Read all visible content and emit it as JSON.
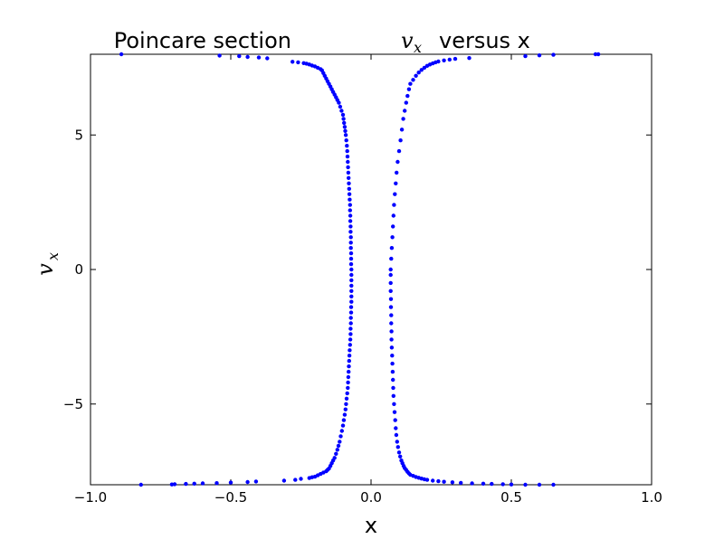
{
  "chart_data": {
    "type": "scatter",
    "title": "Poincare section",
    "title_var": "v",
    "title_var_sub": "x",
    "title_suffix": "versus x",
    "xlabel": "x",
    "ylabel": "v",
    "ylabel_sub": "x",
    "xlim": [
      -1.0,
      1.0
    ],
    "ylim": [
      -8,
      8
    ],
    "xticks": [
      -1.0,
      -0.5,
      0.0,
      0.5,
      1.0
    ],
    "xtick_labels": [
      "−1.0",
      "−0.5",
      "0.0",
      "0.5",
      "1.0"
    ],
    "yticks": [
      -5,
      0,
      5
    ],
    "ytick_labels": [
      "−5",
      "0",
      "5"
    ],
    "grid": false,
    "marker_color": "#0000ff",
    "series": [
      {
        "x": [
          -0.89,
          -0.54,
          -0.47,
          -0.44,
          -0.4,
          -0.37,
          -0.28,
          -0.26,
          -0.24,
          -0.23,
          -0.22,
          -0.21,
          -0.2,
          -0.19,
          -0.18,
          -0.175,
          -0.17,
          -0.165,
          -0.16,
          -0.155,
          -0.15,
          -0.145,
          -0.14,
          -0.135,
          -0.13,
          -0.125,
          -0.12,
          -0.115,
          -0.11,
          -0.105,
          -0.1,
          -0.098,
          -0.096,
          -0.094,
          -0.092,
          -0.09,
          -0.088,
          -0.086,
          -0.085,
          -0.084,
          -0.083,
          -0.082,
          -0.081,
          -0.08,
          -0.079,
          -0.078,
          -0.077,
          -0.076,
          -0.075,
          -0.075,
          -0.074,
          -0.074,
          -0.073,
          -0.073,
          -0.072,
          -0.072,
          -0.072,
          -0.071,
          -0.071,
          -0.071,
          -0.07,
          -0.07,
          -0.07,
          -0.07,
          -0.07,
          -0.07,
          -0.07,
          -0.071,
          -0.071,
          -0.072,
          -0.072,
          -0.073,
          -0.073,
          -0.074,
          -0.075,
          -0.076,
          -0.077,
          -0.078,
          -0.079,
          -0.08,
          -0.081,
          -0.082,
          -0.083,
          -0.085,
          -0.087,
          -0.089,
          -0.091,
          -0.094,
          -0.097,
          -0.1,
          -0.104,
          -0.108,
          -0.112,
          -0.116,
          -0.12,
          -0.125,
          -0.13,
          -0.135,
          -0.14,
          -0.145,
          -0.15,
          -0.155,
          -0.16,
          -0.17,
          -0.18,
          -0.19,
          -0.2,
          -0.21,
          -0.22,
          -0.25,
          -0.27,
          -0.31,
          -0.41,
          -0.44,
          -0.5,
          -0.55,
          -0.6,
          -0.63,
          -0.66,
          -0.7,
          -0.71,
          -0.82
        ],
        "y": [
          8.0,
          7.95,
          7.93,
          7.9,
          7.88,
          7.85,
          7.72,
          7.7,
          7.67,
          7.65,
          7.62,
          7.58,
          7.55,
          7.5,
          7.45,
          7.4,
          7.3,
          7.2,
          7.1,
          7.0,
          6.9,
          6.8,
          6.7,
          6.6,
          6.5,
          6.4,
          6.3,
          6.2,
          6.05,
          5.9,
          5.75,
          5.6,
          5.45,
          5.3,
          5.15,
          5.0,
          4.8,
          4.6,
          4.4,
          4.2,
          4.0,
          3.8,
          3.6,
          3.4,
          3.2,
          3.0,
          2.8,
          2.6,
          2.4,
          2.2,
          2.0,
          1.8,
          1.6,
          1.4,
          1.2,
          1.0,
          0.8,
          0.6,
          0.4,
          0.2,
          0.0,
          -0.2,
          -0.4,
          -0.6,
          -0.8,
          -1.0,
          -1.2,
          -1.4,
          -1.6,
          -1.8,
          -2.0,
          -2.2,
          -2.4,
          -2.6,
          -2.8,
          -3.0,
          -3.2,
          -3.4,
          -3.6,
          -3.8,
          -4.0,
          -4.2,
          -4.4,
          -4.6,
          -4.8,
          -5.0,
          -5.2,
          -5.4,
          -5.6,
          -5.8,
          -6.0,
          -6.2,
          -6.4,
          -6.55,
          -6.7,
          -6.85,
          -7.0,
          -7.1,
          -7.2,
          -7.3,
          -7.4,
          -7.45,
          -7.5,
          -7.55,
          -7.6,
          -7.65,
          -7.7,
          -7.72,
          -7.75,
          -7.78,
          -7.82,
          -7.85,
          -7.88,
          -7.9,
          -7.92,
          -7.94,
          -7.95,
          -7.96,
          -7.97,
          -7.98,
          -7.99,
          -8.0
        ]
      },
      {
        "x": [
          0.07,
          0.072,
          0.074,
          0.076,
          0.078,
          0.08,
          0.082,
          0.085,
          0.088,
          0.091,
          0.095,
          0.1,
          0.105,
          0.11,
          0.115,
          0.12,
          0.125,
          0.13,
          0.135,
          0.14,
          0.15,
          0.16,
          0.17,
          0.18,
          0.19,
          0.2,
          0.21,
          0.22,
          0.23,
          0.24,
          0.26,
          0.28,
          0.3,
          0.35,
          0.55,
          0.6,
          0.65,
          0.8,
          0.81,
          0.07,
          0.07,
          0.07,
          0.071,
          0.071,
          0.072,
          0.072,
          0.073,
          0.073,
          0.074,
          0.075,
          0.076,
          0.077,
          0.078,
          0.079,
          0.08,
          0.082,
          0.084,
          0.086,
          0.088,
          0.09,
          0.093,
          0.096,
          0.1,
          0.104,
          0.108,
          0.112,
          0.116,
          0.12,
          0.125,
          0.13,
          0.135,
          0.14,
          0.15,
          0.16,
          0.17,
          0.18,
          0.19,
          0.2,
          0.22,
          0.24,
          0.26,
          0.29,
          0.32,
          0.36,
          0.4,
          0.43,
          0.47,
          0.5,
          0.55,
          0.6,
          0.65
        ],
        "y": [
          0.0,
          0.4,
          0.8,
          1.2,
          1.6,
          2.0,
          2.4,
          2.8,
          3.2,
          3.6,
          4.0,
          4.4,
          4.8,
          5.2,
          5.6,
          5.9,
          6.2,
          6.45,
          6.7,
          6.9,
          7.05,
          7.2,
          7.32,
          7.42,
          7.5,
          7.57,
          7.62,
          7.66,
          7.7,
          7.73,
          7.77,
          7.8,
          7.83,
          7.86,
          7.93,
          7.96,
          7.98,
          8.0,
          8.0,
          -0.2,
          -0.5,
          -0.8,
          -1.1,
          -1.4,
          -1.7,
          -2.0,
          -2.3,
          -2.6,
          -2.9,
          -3.2,
          -3.5,
          -3.8,
          -4.1,
          -4.4,
          -4.7,
          -5.0,
          -5.3,
          -5.6,
          -5.9,
          -6.15,
          -6.4,
          -6.6,
          -6.8,
          -6.95,
          -7.1,
          -7.2,
          -7.3,
          -7.38,
          -7.45,
          -7.52,
          -7.58,
          -7.63,
          -7.67,
          -7.71,
          -7.74,
          -7.77,
          -7.8,
          -7.82,
          -7.85,
          -7.87,
          -7.89,
          -7.91,
          -7.93,
          -7.95,
          -7.96,
          -7.97,
          -7.98,
          -7.99,
          -8.0,
          -8.0,
          -8.0
        ]
      }
    ]
  }
}
